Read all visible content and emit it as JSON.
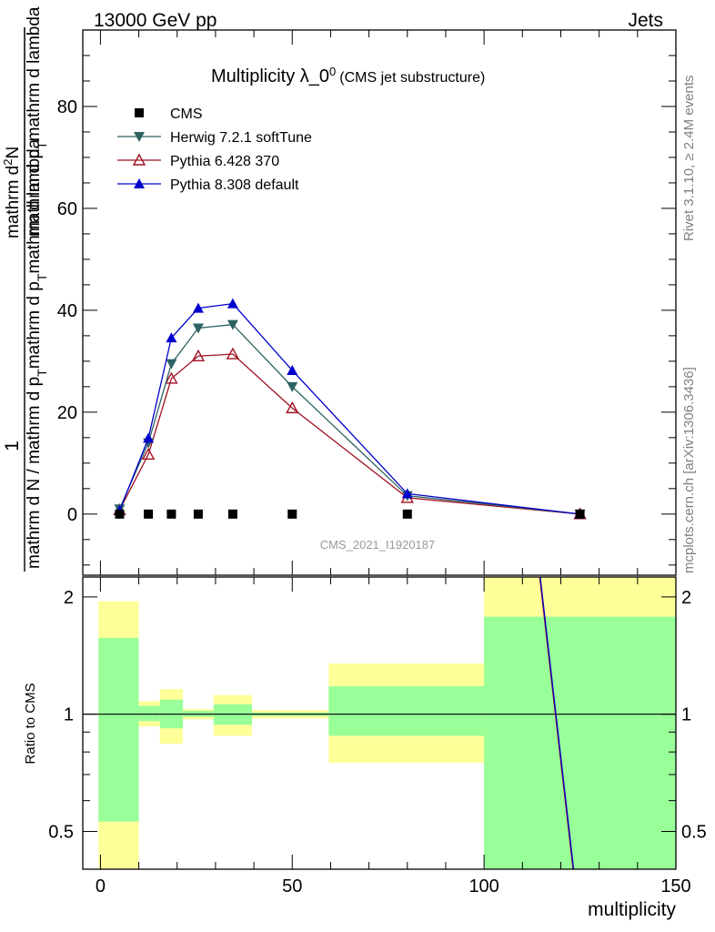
{
  "header": {
    "energy": "13000 GeV pp",
    "category": "Jets"
  },
  "side_labels": {
    "rivet": "Rivet 3.1.10, ≥ 2.4M events",
    "mcplots": "mcplots.cern.ch [arXiv:1306.3436]"
  },
  "watermark": "CMS_2021_I1920187",
  "colors": {
    "cms": "#000000",
    "herwig": "#2f6262",
    "pythia6": "#a01020",
    "pythia8": "#0000cc",
    "band_outer": "#ffff99",
    "band_inner": "#99ff99"
  },
  "chart_data": {
    "type": "line",
    "title_main": "Multiplicity λ_0",
    "title_sup": "0",
    "title_sub": "(CMS jet substructure)",
    "ylabel": {
      "numerator": "1",
      "num_a": "mathrm d",
      "num_b": "N",
      "num_c": "mathrm d N / mathrm d p",
      "num_sub": "T",
      "num_d": "mathrm d lambda",
      "den_a": "mathrm d N / mathrm d p",
      "den_b": "mathrm d p",
      "den_c": "mathrm d p",
      "den_d": "mathrm d lambda",
      "full_numerator_text": "mathrm d²N",
      "full_numerator_super": "2",
      "full_denominator_text": "mathrm d p_T mathrm d lambda"
    },
    "xlabel": "multiplicity",
    "ratio_ylabel": "Ratio to CMS",
    "xlim": [
      -4.6,
      150
    ],
    "ylim": [
      -12,
      95
    ],
    "ratio_ylim": [
      0.4,
      2.25
    ],
    "x_ticks": [
      0,
      50,
      100,
      150
    ],
    "y_ticks": [
      0,
      20,
      40,
      60,
      80
    ],
    "ratio_ticks": [
      0.5,
      1,
      2
    ],
    "ratio_tick_labels": [
      "0.5",
      "1",
      "2"
    ],
    "legend": [
      "CMS",
      "Herwig 7.2.1 softTune",
      "Pythia 6.428 370",
      "Pythia 8.308 default"
    ],
    "series": [
      {
        "name": "CMS",
        "x": [
          5,
          12.5,
          18.5,
          25.5,
          34.5,
          50,
          80,
          125
        ],
        "y": [
          0.0,
          0.0,
          0.0,
          0.0,
          0.0,
          0.0,
          0.0,
          0.0
        ]
      },
      {
        "name": "Herwig 7.2.1 softTune",
        "x": [
          5,
          12.5,
          18.5,
          25.5,
          34.5,
          50,
          80,
          125
        ],
        "y": [
          1.0,
          14.0,
          29.5,
          36.5,
          37.2,
          25.0,
          3.6,
          0.0
        ]
      },
      {
        "name": "Pythia 6.428 370",
        "x": [
          5,
          12.5,
          18.5,
          25.5,
          34.5,
          50,
          80,
          125
        ],
        "y": [
          0.8,
          11.7,
          26.6,
          31.0,
          31.4,
          20.8,
          3.2,
          0.0
        ]
      },
      {
        "name": "Pythia 8.308 default",
        "x": [
          5,
          12.5,
          18.5,
          25.5,
          34.5,
          50,
          80,
          125
        ],
        "y": [
          0.7,
          14.9,
          34.6,
          40.4,
          41.3,
          28.2,
          4.0,
          0.0
        ]
      }
    ],
    "ratio_bands": [
      {
        "x0": -0.5,
        "x1": 10,
        "outer": [
          0.38,
          1.95
        ],
        "inner": [
          0.53,
          1.57
        ]
      },
      {
        "x0": 10,
        "x1": 15.5,
        "outer": [
          0.93,
          1.08
        ],
        "inner": [
          0.96,
          1.05
        ]
      },
      {
        "x0": 15.5,
        "x1": 21.5,
        "outer": [
          0.84,
          1.16
        ],
        "inner": [
          0.92,
          1.09
        ]
      },
      {
        "x0": 21.5,
        "x1": 29.5,
        "outer": [
          0.97,
          1.03
        ],
        "inner": [
          0.985,
          1.02
        ]
      },
      {
        "x0": 29.5,
        "x1": 39.5,
        "outer": [
          0.88,
          1.12
        ],
        "inner": [
          0.94,
          1.06
        ]
      },
      {
        "x0": 39.5,
        "x1": 59.5,
        "outer": [
          0.975,
          1.025
        ],
        "inner": [
          0.99,
          1.01
        ]
      },
      {
        "x0": 59.5,
        "x1": 100,
        "outer": [
          0.75,
          1.35
        ],
        "inner": [
          0.88,
          1.18
        ]
      },
      {
        "x0": 100,
        "x1": 150,
        "outer": [
          0.4,
          2.25
        ],
        "inner": [
          0.4,
          1.78
        ]
      }
    ],
    "ratio_line": {
      "x": [
        114.5,
        123.2
      ],
      "y": [
        2.25,
        0.4
      ]
    }
  }
}
